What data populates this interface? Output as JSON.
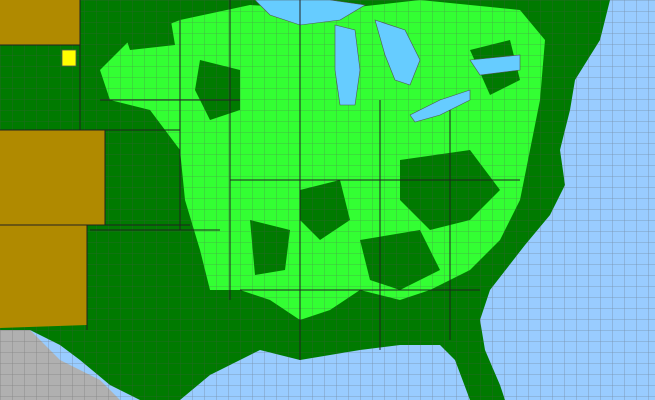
{
  "map": {
    "colors": {
      "water": "#99ccff",
      "county_present": "#33ff33",
      "state_present": "#007a00",
      "absent_state": "#b08a00",
      "highlight_county": "#ffff00",
      "non_us": "#b0b0b0",
      "borders": "#555555"
    }
  }
}
